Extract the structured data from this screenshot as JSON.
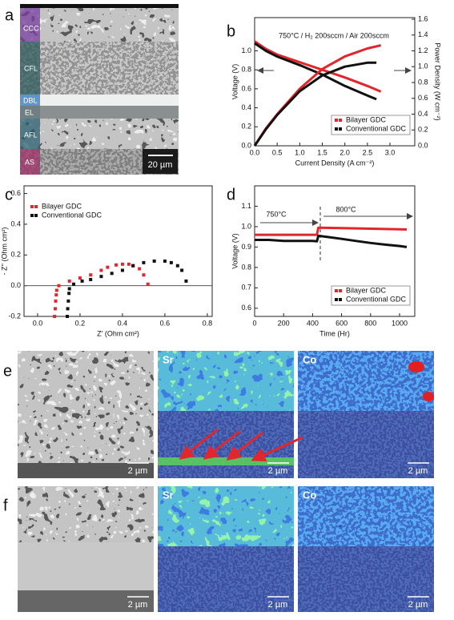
{
  "panels": {
    "a": {
      "letter": "a",
      "layers": [
        "CCC",
        "CFL",
        "DBL",
        "EL",
        "AFL",
        "AS"
      ],
      "scale_bar": "20 µm"
    },
    "e": {
      "letter": "e",
      "maps": [
        "Sr",
        "Co"
      ],
      "scale_bars": [
        "2 µm",
        "2 µm",
        "2 µm"
      ]
    },
    "f": {
      "letter": "f",
      "maps": [
        "Sr",
        "Co"
      ],
      "scale_bars": [
        "2 µm",
        "2 µm",
        "2 µm"
      ]
    }
  },
  "chart_data": [
    {
      "label": "b",
      "type": "line",
      "annotations": [
        "750°C / H₂ 200sccm / Air 200sccm"
      ],
      "xlabel": "Current Density (A cm⁻²)",
      "ylabel": "Voltage (V)",
      "y2label": "Power Density (W cm⁻²)",
      "xlim": [
        0,
        3.55
      ],
      "xticks": [
        {
          "value": 0,
          "label": "0.0"
        },
        0.5,
        {
          "value": 1,
          "label": "1.0"
        },
        1.5,
        {
          "value": 2,
          "label": "2.0"
        },
        2.5,
        {
          "value": 3,
          "label": "3.0"
        }
      ],
      "ylim": [
        0,
        1.35
      ],
      "yticks": [
        {
          "value": 0,
          "label": "0.0"
        },
        0.2,
        0.4,
        0.6,
        0.8,
        {
          "value": 1,
          "label": "1.0"
        }
      ],
      "y2lim": [
        0,
        1.62
      ],
      "y2ticks": [
        {
          "value": 0,
          "label": "0.0"
        },
        0.2,
        0.4,
        0.6,
        0.8,
        {
          "value": 1,
          "label": "1.0"
        },
        1.2,
        1.4,
        1.6
      ],
      "legend": "lower right",
      "series": [
        {
          "name": "Bilayer GDC",
          "color": "#e3262b",
          "x": [
            0,
            0.25,
            0.5,
            1,
            1.5,
            2,
            2.5,
            2.8
          ],
          "values": [
            1.1,
            1.02,
            0.96,
            0.88,
            0.8,
            0.72,
            0.63,
            0.57
          ]
        },
        {
          "name": "Conventional GDC",
          "color": "#111111",
          "x": [
            0,
            0.25,
            0.5,
            1,
            1.5,
            2,
            2.5,
            2.7
          ],
          "values": [
            1.08,
            1,
            0.94,
            0.85,
            0.75,
            0.63,
            0.53,
            0.49
          ]
        },
        {
          "color": "#e3262b",
          "axis": "y2",
          "x": [
            0,
            0.25,
            0.5,
            1,
            1.5,
            2,
            2.5,
            2.8
          ],
          "values": [
            0,
            0.22,
            0.4,
            0.72,
            0.97,
            1.13,
            1.23,
            1.27
          ]
        },
        {
          "color": "#111111",
          "axis": "y2",
          "x": [
            0,
            0.25,
            0.5,
            1,
            1.5,
            2,
            2.5,
            2.7
          ],
          "values": [
            0,
            0.21,
            0.39,
            0.69,
            0.89,
            1,
            1.05,
            1.05
          ]
        }
      ]
    },
    {
      "label": "c",
      "type": "scatter",
      "xlabel": "Z' (Ohm cm²)",
      "ylabel": "- Z'' (Ohm cm²)",
      "zero_line": true,
      "xlim": [
        -0.064,
        0.823
      ],
      "xticks": [
        {
          "value": 0,
          "label": "0.0"
        },
        0.2,
        0.4,
        0.6,
        0.8
      ],
      "ylim": [
        -0.2,
        0.65
      ],
      "yticks": [
        0.6,
        0.4,
        0.2,
        {
          "value": 0,
          "label": "0.0"
        },
        -0.2
      ],
      "legend": "upper left",
      "series": [
        {
          "name": "Bilayer GDC",
          "color": "#e3262b",
          "x": [
            0.08,
            0.083,
            0.085,
            0.088,
            0.09,
            0.1,
            0.15,
            0.2,
            0.25,
            0.3,
            0.33,
            0.37,
            0.4,
            0.43,
            0.45,
            0.48,
            0.5,
            0.52
          ],
          "values": [
            -0.2,
            -0.15,
            -0.1,
            -0.06,
            -0.03,
            0,
            0.03,
            0.05,
            0.07,
            0.1,
            0.12,
            0.135,
            0.14,
            0.14,
            0.13,
            0.11,
            0.07,
            0.01
          ]
        },
        {
          "name": "Conventional GDC",
          "color": "#111111",
          "x": [
            0.14,
            0.142,
            0.145,
            0.148,
            0.15,
            0.17,
            0.21,
            0.25,
            0.3,
            0.35,
            0.4,
            0.45,
            0.5,
            0.55,
            0.6,
            0.63,
            0.66,
            0.68,
            0.7
          ],
          "values": [
            -0.2,
            -0.15,
            -0.1,
            -0.05,
            -0.02,
            0.01,
            0.03,
            0.04,
            0.06,
            0.08,
            0.1,
            0.13,
            0.15,
            0.16,
            0.16,
            0.15,
            0.13,
            0.1,
            0.03
          ]
        }
      ]
    },
    {
      "label": "d",
      "type": "line",
      "annotations": [
        "750°C",
        "800°C"
      ],
      "xlabel": "Time (Hr)",
      "ylabel": "Voltage (V)",
      "xlim": [
        0,
        1105
      ],
      "xticks": [
        0,
        200,
        400,
        600,
        800,
        1000
      ],
      "ylim": [
        0.56,
        1.2
      ],
      "yticks": [
        0.6,
        0.7,
        0.8,
        0.9,
        {
          "value": 1,
          "label": "1.0"
        },
        1.1
      ],
      "legend": "lower right",
      "series": [
        {
          "name": "Bilayer GDC",
          "color": "#e3262b",
          "x": [
            0,
            100,
            200,
            300,
            400,
            430,
            440,
            600,
            800,
            1000,
            1050
          ],
          "values": [
            0.96,
            0.96,
            0.96,
            0.96,
            0.96,
            0.96,
            0.995,
            0.993,
            0.99,
            0.987,
            0.986
          ]
        },
        {
          "name": "Conventional GDC",
          "color": "#111111",
          "x": [
            0,
            100,
            200,
            300,
            400,
            430,
            440,
            500,
            600,
            700,
            800,
            900,
            1000,
            1050
          ],
          "values": [
            0.935,
            0.935,
            0.93,
            0.93,
            0.93,
            0.928,
            0.955,
            0.95,
            0.94,
            0.93,
            0.92,
            0.912,
            0.905,
            0.9
          ]
        }
      ]
    }
  ]
}
